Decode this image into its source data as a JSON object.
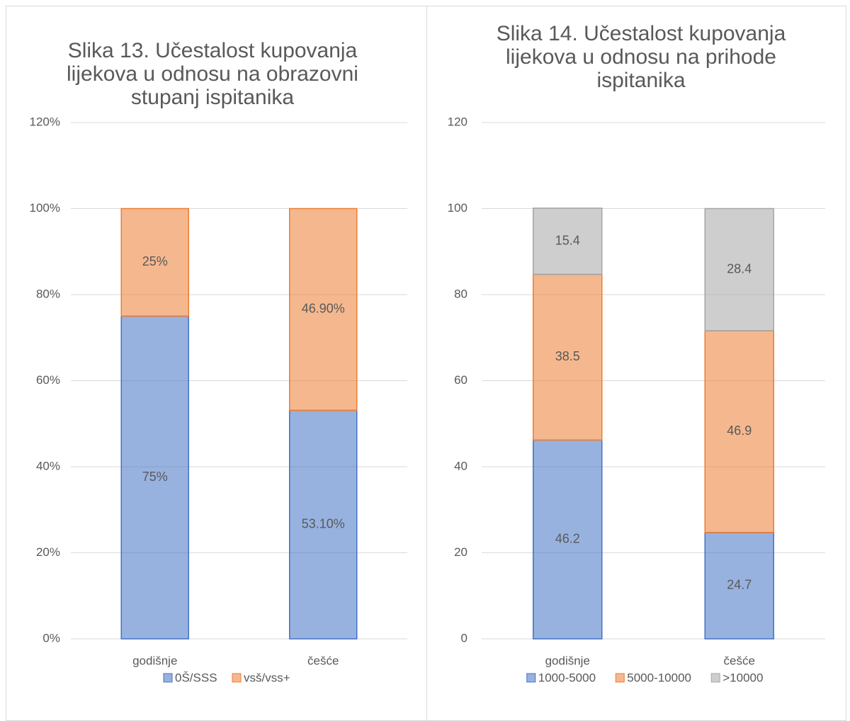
{
  "chart_data": [
    {
      "type": "stacked_bar",
      "title": "Slika 13. Učestalost kupovanja lijekova u odnosu na obrazovni stupanj ispitanika",
      "categories": [
        "godišnje",
        "češće"
      ],
      "series": [
        {
          "name": "0Š/SSS",
          "color": "#4472c4",
          "values": [
            75,
            53.1
          ],
          "value_labels": [
            "75%",
            "53.10%"
          ]
        },
        {
          "name": "vsš/vss+",
          "color": "#ed7d31",
          "values": [
            25,
            46.9
          ],
          "value_labels": [
            "25%",
            "46.90%"
          ]
        }
      ],
      "ylim": [
        0,
        120
      ],
      "yticks": [
        {
          "value": 0,
          "label": "0%"
        },
        {
          "value": 20,
          "label": "20%"
        },
        {
          "value": 40,
          "label": "40%"
        },
        {
          "value": 60,
          "label": "60%"
        },
        {
          "value": 80,
          "label": "80%"
        },
        {
          "value": 100,
          "label": "100%"
        },
        {
          "value": 120,
          "label": "120%"
        }
      ],
      "grid": true,
      "legend": "bottom"
    },
    {
      "type": "stacked_bar",
      "title": "Slika 14. Učestalost kupovanja lijekova u odnosu na prihode ispitanika",
      "categories": [
        "godišnje",
        "češće"
      ],
      "series": [
        {
          "name": "1000-5000",
          "color": "#4472c4",
          "values": [
            46.2,
            24.7
          ]
        },
        {
          "name": "5000-10000",
          "color": "#ed7d31",
          "values": [
            38.5,
            46.9
          ]
        },
        {
          "name": ">10000",
          "color": "#a5a5a5",
          "values": [
            15.4,
            28.4
          ]
        }
      ],
      "ylim": [
        0,
        120
      ],
      "yticks": [
        0,
        20,
        40,
        60,
        80,
        100,
        120
      ],
      "grid": true,
      "legend": "bottom"
    }
  ]
}
